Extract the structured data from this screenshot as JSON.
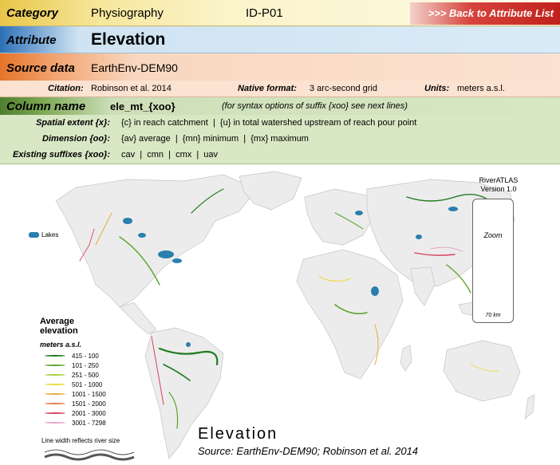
{
  "header": {
    "category_label": "Category",
    "category_value": "Physiography",
    "id": "ID-P01",
    "back_link": ">>> Back to Attribute List"
  },
  "attribute": {
    "label": "Attribute",
    "value": "Elevation"
  },
  "source": {
    "label": "Source data",
    "value": "EarthEnv-DEM90",
    "citation_label": "Citation:",
    "citation_value": "Robinson et al. 2014",
    "format_label": "Native format:",
    "format_value": "3 arc-second grid",
    "units_label": "Units:",
    "units_value": "meters a.s.l."
  },
  "column": {
    "label": "Column name",
    "value": "ele_mt_{xoo}",
    "note": "(for syntax options of suffix {xoo} see next lines)",
    "extent_label": "Spatial extent {x}:",
    "extent_value": "{c} in reach catchment  |  {u} in total watershed upstream of reach pour point",
    "dimension_label": "Dimension {oo}:",
    "dimension_value": "{av} average  |  {mn} minimum  |  {mx} maximum",
    "suffixes_label": "Existing suffixes {xoo}:",
    "suffixes_value": "cav  |  cmn  |  cmx  |  uav"
  },
  "map": {
    "lakes_label": "Lakes",
    "legend_title": "Average elevation",
    "legend_unit": "meters a.s.l.",
    "legend_items": [
      {
        "label": "415 - 100",
        "color": "#1f7a1f"
      },
      {
        "label": "101 - 250",
        "color": "#5aa52a"
      },
      {
        "label": "251 - 500",
        "color": "#a9cf3d"
      },
      {
        "label": "501 - 1000",
        "color": "#e8dc3a"
      },
      {
        "label": "1001 - 1500",
        "color": "#e6a93a"
      },
      {
        "label": "1501 - 2000",
        "color": "#e07a4a"
      },
      {
        "label": "2001 - 3000",
        "color": "#d9425f"
      },
      {
        "label": "3001 - 7298",
        "color": "#e8a3c8"
      }
    ],
    "width_note": "Line width reflects river size",
    "riveratlas_label": "RiverATLAS",
    "version_label": "Version 1.0",
    "zoom_label": "Zoom",
    "scale_label": "70 km",
    "title": "Elevation",
    "source_note": "Source: EarthEnv-DEM90; Robinson et al. 2014"
  },
  "colors": {
    "land": "#ececec",
    "lake": "#2a7fae",
    "back_button": "#c0201b"
  }
}
